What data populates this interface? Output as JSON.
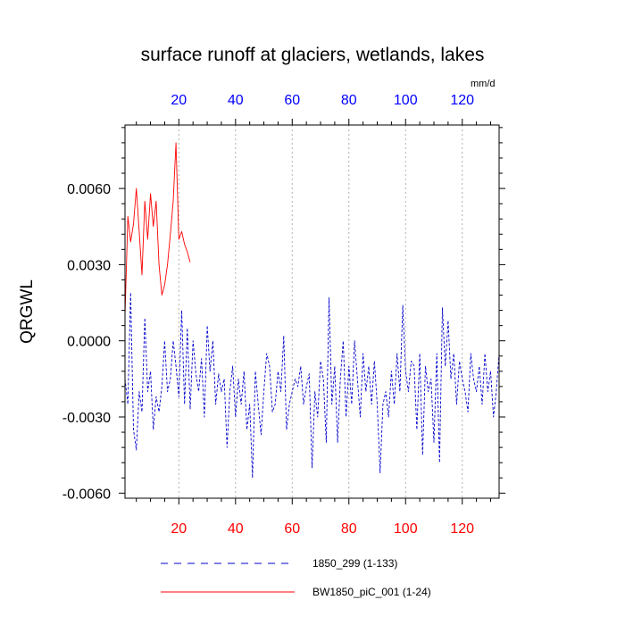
{
  "chart_data": {
    "type": "line",
    "title": "surface runoff at glaciers, wetlands, lakes",
    "ylabel": "QRGWL",
    "units": "mm/d",
    "xlim": [
      1,
      133
    ],
    "ylim": [
      -0.0062,
      0.0085
    ],
    "y_ticks": [
      "0.0060",
      "0.0030",
      "0.0000",
      "-0.0030",
      "-0.0060"
    ],
    "y_tick_values": [
      0.006,
      0.003,
      0.0,
      -0.003,
      -0.006
    ],
    "x_ticks_bottom": [
      "20",
      "40",
      "60",
      "80",
      "100",
      "120"
    ],
    "x_ticks_top": [
      "20",
      "40",
      "60",
      "80",
      "100",
      "120"
    ],
    "x_tick_values": [
      20,
      40,
      60,
      80,
      100,
      120
    ],
    "bottom_axis_color": "#ff0000",
    "top_axis_color": "#0000ff",
    "vertical_grid": true,
    "legend_position": "bottom",
    "series": [
      {
        "name": "1850_299 (1-133)",
        "color": "#0000cc",
        "style": "dashed",
        "x": [
          1,
          2,
          3,
          4,
          5,
          6,
          7,
          8,
          9,
          10,
          11,
          12,
          13,
          14,
          15,
          16,
          17,
          18,
          19,
          20,
          21,
          22,
          23,
          24,
          25,
          26,
          27,
          28,
          29,
          30,
          31,
          32,
          33,
          34,
          35,
          36,
          37,
          38,
          39,
          40,
          41,
          42,
          43,
          44,
          45,
          46,
          47,
          48,
          49,
          50,
          51,
          52,
          53,
          54,
          55,
          56,
          57,
          58,
          59,
          60,
          61,
          62,
          63,
          64,
          65,
          66,
          67,
          68,
          69,
          70,
          71,
          72,
          73,
          74,
          75,
          76,
          77,
          78,
          79,
          80,
          81,
          82,
          83,
          84,
          85,
          86,
          87,
          88,
          89,
          90,
          91,
          92,
          93,
          94,
          95,
          96,
          97,
          98,
          99,
          100,
          101,
          102,
          103,
          104,
          105,
          106,
          107,
          108,
          109,
          110,
          111,
          112,
          113,
          114,
          115,
          116,
          117,
          118,
          119,
          120,
          121,
          122,
          123,
          124,
          125,
          126,
          127,
          128,
          129,
          130,
          131,
          132,
          133
        ],
        "values": [
          -0.0015,
          -0.0025,
          0.0019,
          -0.0035,
          -0.0043,
          -0.002,
          -0.0028,
          0.0009,
          -0.002,
          -0.0012,
          -0.0035,
          -0.0022,
          -0.0028,
          -0.0018,
          0.0,
          -0.002,
          -0.0015,
          0.0,
          -0.001,
          -0.0022,
          0.0012,
          -0.0025,
          0.0005,
          -0.0027,
          0.0,
          -0.0013,
          -0.002,
          -0.0007,
          -0.003,
          0.0006,
          -0.0012,
          0.0,
          -0.0025,
          -0.0013,
          -0.002,
          -0.0015,
          -0.0042,
          -0.002,
          -0.001,
          -0.003,
          -0.0015,
          -0.0025,
          -0.0012,
          -0.0035,
          -0.0025,
          -0.0054,
          -0.0012,
          -0.0025,
          -0.0037,
          -0.002,
          -0.0005,
          -0.001,
          -0.0028,
          -0.0025,
          -0.0012,
          -0.002,
          0.0002,
          -0.0035,
          -0.0025,
          -0.002,
          -0.0015,
          -0.0018,
          -0.001,
          -0.0025,
          -0.0018,
          -0.0013,
          -0.005,
          -0.002,
          -0.003,
          -0.0008,
          -0.0015,
          -0.004,
          0.0017,
          -0.0025,
          -0.001,
          -0.004,
          -0.0015,
          0.0,
          -0.003,
          -0.001,
          -0.0025,
          0.0,
          -0.0015,
          -0.003,
          -0.0005,
          -0.002,
          -0.001,
          -0.0025,
          -0.0008,
          -0.0025,
          -0.0052,
          -0.0025,
          -0.002,
          -0.003,
          -0.0012,
          -0.0025,
          -0.0005,
          -0.002,
          0.0014,
          -0.0012,
          -0.002,
          -0.0008,
          -0.001,
          -0.0035,
          -0.0005,
          -0.0045,
          -0.001,
          -0.002,
          -0.0015,
          -0.004,
          -0.0005,
          -0.0048,
          0.0013,
          -0.001,
          0.0008,
          -0.0015,
          -0.0005,
          -0.0025,
          -0.0008,
          -0.0015,
          -0.002,
          -0.0028,
          -0.0005,
          -0.0015,
          -0.002,
          -0.001,
          -0.0025,
          -0.0005,
          -0.002,
          -0.0012,
          -0.003,
          -0.002,
          -0.0005
        ]
      },
      {
        "name": "BW1850_piC_001 (1-24)",
        "color": "#ff0000",
        "style": "solid",
        "x": [
          1,
          2,
          3,
          4,
          5,
          6,
          7,
          8,
          9,
          10,
          11,
          12,
          13,
          14,
          15,
          16,
          17,
          18,
          19,
          20,
          21,
          22,
          23,
          24
        ],
        "values": [
          0.001,
          0.0049,
          0.0039,
          0.0046,
          0.006,
          0.0043,
          0.0026,
          0.0055,
          0.004,
          0.0058,
          0.0045,
          0.0055,
          0.003,
          0.0018,
          0.0022,
          0.003,
          0.0042,
          0.0055,
          0.0078,
          0.004,
          0.0043,
          0.0038,
          0.0035,
          0.0031
        ]
      }
    ]
  }
}
